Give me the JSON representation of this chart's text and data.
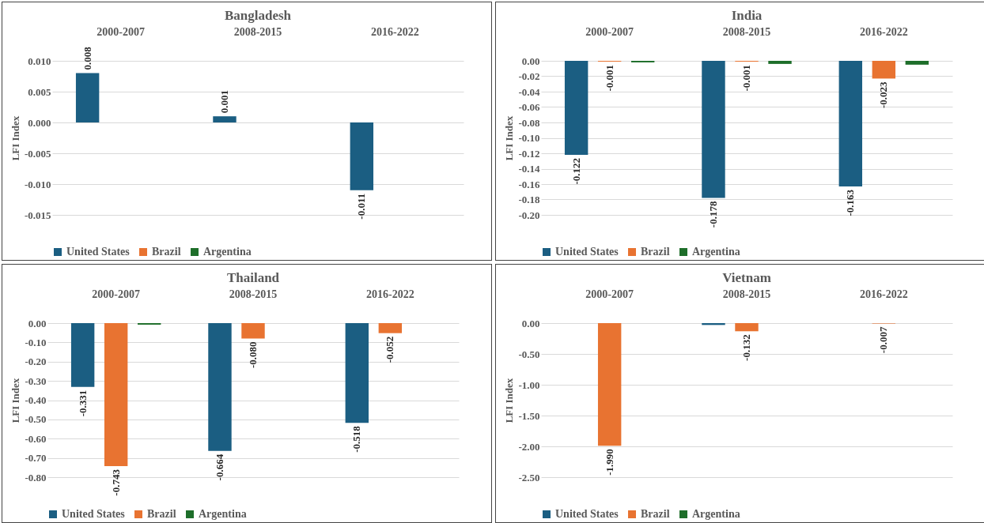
{
  "chart_data": [
    {
      "type": "bar",
      "title": "Bangladesh",
      "ylabel": "LFI Index",
      "categories": [
        "2000-2007",
        "2008-2015",
        "2016-2022"
      ],
      "series": [
        {
          "name": "United States",
          "color": "#1b5e82",
          "values": [
            0.008,
            0.001,
            -0.011
          ],
          "value_labels": [
            "0.008",
            "0.001",
            "-0.011"
          ]
        },
        {
          "name": "Brazil",
          "color": "#e87331",
          "values": [
            0,
            0,
            0
          ],
          "value_labels": [
            null,
            null,
            null
          ]
        },
        {
          "name": "Argentina",
          "color": "#1e6e2a",
          "values": [
            0,
            0,
            0
          ],
          "value_labels": [
            null,
            null,
            null
          ]
        }
      ],
      "ylim": [
        -0.015,
        0.01
      ],
      "yticks": [
        {
          "value": 0.01,
          "label": "0.010"
        },
        0.005,
        {
          "value": 0,
          "label": "0.000"
        },
        -0.005,
        {
          "value": -0.01,
          "label": "-0.010"
        },
        -0.015
      ],
      "grid": "y",
      "legend": "bottom"
    },
    {
      "type": "bar",
      "title": "India",
      "ylabel": "LFI Index",
      "categories": [
        "2000-2007",
        "2008-2015",
        "2016-2022"
      ],
      "series": [
        {
          "name": "United States",
          "color": "#1b5e82",
          "values": [
            -0.122,
            -0.178,
            -0.163
          ],
          "value_labels": [
            "-0.122",
            "-0.178",
            "-0.163"
          ]
        },
        {
          "name": "Brazil",
          "color": "#e87331",
          "values": [
            -0.001,
            -0.001,
            -0.023
          ],
          "value_labels": [
            "-0.001",
            "-0.001",
            "-0.023"
          ]
        },
        {
          "name": "Argentina",
          "color": "#1e6e2a",
          "values": [
            -0.002,
            -0.004,
            -0.005
          ],
          "value_labels": [
            null,
            null,
            null
          ]
        }
      ],
      "ylim": [
        -0.2,
        0
      ],
      "yticks": [
        {
          "value": 0,
          "label": "0.00"
        },
        -0.02,
        -0.04,
        -0.06,
        -0.08,
        {
          "value": -0.1,
          "label": "-0.10"
        },
        -0.12,
        -0.14,
        -0.16,
        -0.18,
        {
          "value": -0.2,
          "label": "-0.20"
        }
      ],
      "grid": "y",
      "legend": "bottom"
    },
    {
      "type": "bar",
      "title": "Thailand",
      "ylabel": "LFI Index",
      "categories": [
        "2000-2007",
        "2008-2015",
        "2016-2022"
      ],
      "series": [
        {
          "name": "United States",
          "color": "#1b5e82",
          "values": [
            -0.331,
            -0.664,
            -0.518
          ],
          "value_labels": [
            "-0.331",
            "-0.664",
            "-0.518"
          ]
        },
        {
          "name": "Brazil",
          "color": "#e87331",
          "values": [
            -0.743,
            -0.08,
            -0.052
          ],
          "value_labels": [
            "-0.743",
            "-0.080",
            "-0.052"
          ]
        },
        {
          "name": "Argentina",
          "color": "#1e6e2a",
          "values": [
            -0.008,
            0,
            0
          ],
          "value_labels": [
            null,
            null,
            null
          ]
        }
      ],
      "ylim": [
        -0.8,
        0
      ],
      "yticks": [
        {
          "value": 0,
          "label": "0.00"
        },
        {
          "value": -0.1,
          "label": "-0.10"
        },
        {
          "value": -0.2,
          "label": "-0.20"
        },
        {
          "value": -0.3,
          "label": "-0.30"
        },
        {
          "value": -0.4,
          "label": "-0.40"
        },
        {
          "value": -0.5,
          "label": "-0.50"
        },
        {
          "value": -0.6,
          "label": "-0.60"
        },
        {
          "value": -0.7,
          "label": "-0.70"
        },
        {
          "value": -0.8,
          "label": "-0.80"
        }
      ],
      "grid": "y",
      "legend": "bottom"
    },
    {
      "type": "bar",
      "title": "Vietnam",
      "ylabel": "LFI Index",
      "categories": [
        "2000-2007",
        "2008-2015",
        "2016-2022"
      ],
      "series": [
        {
          "name": "United States",
          "color": "#1b5e82",
          "values": [
            0,
            -0.03,
            0
          ],
          "value_labels": [
            null,
            null,
            null
          ]
        },
        {
          "name": "Brazil",
          "color": "#e87331",
          "values": [
            -1.99,
            -0.132,
            -0.007
          ],
          "value_labels": [
            "-1.990",
            "-0.132",
            "-0.007"
          ]
        },
        {
          "name": "Argentina",
          "color": "#1e6e2a",
          "values": [
            0,
            0,
            0
          ],
          "value_labels": [
            null,
            null,
            null
          ]
        }
      ],
      "ylim": [
        -2.5,
        0
      ],
      "yticks": [
        {
          "value": 0,
          "label": "0.00"
        },
        {
          "value": -0.5,
          "label": "-0.50"
        },
        {
          "value": -1,
          "label": "-1.00"
        },
        {
          "value": -1.5,
          "label": "-1.50"
        },
        {
          "value": -2,
          "label": "-2.00"
        },
        {
          "value": -2.5,
          "label": "-2.50"
        }
      ],
      "grid": "y",
      "legend": "bottom"
    }
  ]
}
